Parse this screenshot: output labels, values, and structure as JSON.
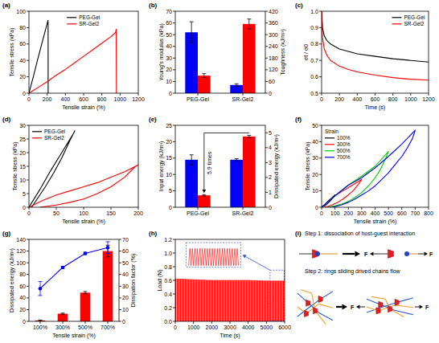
{
  "chart_data": [
    {
      "panel": "(a)",
      "type": "line",
      "x_label": "Tensile strain (%)",
      "y_label": "Tensile stress (kPa)",
      "xlim": [
        0,
        1200
      ],
      "xticks": [
        0,
        200,
        400,
        600,
        800,
        1000,
        1200
      ],
      "ylim": [
        0,
        100
      ],
      "yticks": [
        0,
        20,
        40,
        60,
        80,
        100
      ],
      "legend": "upper center",
      "series": [
        {
          "name": "PEG-Gel",
          "color": "#000000",
          "x": [
            0,
            50,
            100,
            150,
            200,
            210,
            211
          ],
          "values": [
            0,
            21,
            43,
            64,
            85,
            89,
            0
          ]
        },
        {
          "name": "SR-Gel2",
          "color": "#ff0000",
          "x": [
            0,
            100,
            200,
            300,
            400,
            500,
            600,
            700,
            800,
            900,
            950,
            958,
            960
          ],
          "values": [
            0,
            7,
            14,
            22,
            29,
            37,
            45,
            53,
            61,
            69,
            74,
            78,
            0
          ]
        }
      ]
    },
    {
      "panel": "(b)",
      "type": "bar",
      "categories": [
        "PEG-Gel",
        "SR-Gel2"
      ],
      "y_label": "Young's modulus (kPa)",
      "y2_label": "Toughness (kJ/m³)",
      "ylim": [
        0,
        70
      ],
      "yticks": [
        0,
        10,
        20,
        30,
        40,
        50,
        60,
        70
      ],
      "y2lim": [
        0,
        420
      ],
      "y2ticks": [
        0,
        60,
        120,
        180,
        240,
        300,
        360,
        420
      ],
      "series": [
        {
          "color": "#0000ff",
          "values": [
            52,
            7
          ],
          "errors": [
            9,
            1
          ]
        },
        {
          "color": "#ff0000",
          "axis": "y2",
          "values": [
            90,
            355
          ],
          "errors": [
            10,
            25
          ]
        }
      ]
    },
    {
      "panel": "(c)",
      "type": "line",
      "x_label": "Time (s)",
      "y_label": "σt / σ0",
      "xlim": [
        0,
        1200
      ],
      "xticks": [
        0,
        200,
        400,
        600,
        800,
        1000,
        1200
      ],
      "ylim": [
        0.5,
        1
      ],
      "yticks": [
        0.5,
        0.6,
        0.7,
        0.8,
        0.9,
        {
          "value": 1,
          "label": "1.0"
        }
      ],
      "legend": "upper right",
      "series": [
        {
          "name": "PEG-Gel",
          "color": "#000000",
          "x": [
            0,
            10,
            30,
            60,
            100,
            200,
            300,
            400,
            600,
            800,
            1000,
            1200
          ],
          "values": [
            1.0,
            0.9,
            0.85,
            0.82,
            0.8,
            0.77,
            0.755,
            0.74,
            0.725,
            0.71,
            0.7,
            0.69
          ]
        },
        {
          "name": "SR-Gel2",
          "color": "#ff0000",
          "x": [
            0,
            10,
            30,
            60,
            100,
            200,
            300,
            400,
            600,
            800,
            1000,
            1200
          ],
          "values": [
            1.0,
            0.84,
            0.77,
            0.73,
            0.7,
            0.665,
            0.645,
            0.63,
            0.61,
            0.595,
            0.585,
            0.58
          ]
        }
      ]
    },
    {
      "panel": "(d)",
      "type": "line",
      "x_label": "Tensile strain (%)",
      "y_label": "Tensile stress (kPa)",
      "xlim": [
        0,
        200
      ],
      "xticks": [
        0,
        50,
        100,
        150,
        200
      ],
      "ylim": [
        0,
        30
      ],
      "yticks": [
        0,
        5,
        10,
        15,
        20,
        25,
        30
      ],
      "legend": "upper left",
      "series": [
        {
          "name": "PEG-Gel",
          "color": "#000000",
          "x": [
            0,
            20,
            40,
            60,
            80,
            84,
            75,
            60,
            45,
            30,
            15,
            5
          ],
          "values": [
            0,
            6.5,
            13.5,
            20,
            26.5,
            28,
            24.5,
            18,
            12.5,
            7.5,
            3,
            0
          ]
        },
        {
          "name": "SR-Gel2",
          "color": "#ff0000",
          "x": [
            0,
            25,
            50,
            75,
            100,
            125,
            150,
            175,
            200,
            195,
            175,
            150,
            125,
            100,
            75,
            50,
            25,
            20
          ],
          "values": [
            0,
            2.5,
            4.5,
            6,
            7.5,
            9,
            11,
            13,
            15.5,
            15,
            11,
            7.5,
            5,
            3,
            1.8,
            0.8,
            0.1,
            0
          ]
        }
      ]
    },
    {
      "panel": "(e)",
      "type": "bar",
      "categories": [
        "PEG-Gel",
        "SR-Gel2"
      ],
      "y_label": "Input energy (kJ/m³)",
      "y2_label": "Dissipated energy (kJ/m³)",
      "ylim": [
        0,
        25
      ],
      "yticks": [
        0,
        5,
        10,
        15,
        20,
        25
      ],
      "y2lim": [
        0,
        5.5
      ],
      "y2ticks": [
        0,
        1,
        2,
        3,
        4,
        5
      ],
      "annotation": "5.9 times",
      "series": [
        {
          "color": "#0000ff",
          "values": [
            14.5,
            14.5
          ],
          "errors": [
            1.5,
            0.3
          ]
        },
        {
          "color": "#ff0000",
          "axis": "y2",
          "values": [
            0.8,
            4.75
          ],
          "errors": [
            0.05,
            0.08
          ]
        }
      ]
    },
    {
      "panel": "(f)",
      "type": "line",
      "x_label": "Tensile strain (%)",
      "y_label": "Tensile stress (kPa)",
      "xlim": [
        0,
        800
      ],
      "xticks": [
        0,
        100,
        200,
        300,
        400,
        500,
        600,
        700,
        800
      ],
      "ylim": [
        0,
        50
      ],
      "yticks": [
        0,
        10,
        20,
        30,
        40,
        50
      ],
      "legend": "upper left",
      "legend_title": "Strain",
      "series": [
        {
          "name": "100%",
          "color": "#000000",
          "x": [
            0,
            25,
            50,
            75,
            100,
            90,
            70,
            50,
            30,
            10,
            5
          ],
          "values": [
            0,
            1.8,
            3.8,
            5.7,
            7.5,
            6.3,
            4.3,
            2.6,
            1.2,
            0.3,
            0
          ]
        },
        {
          "name": "300%",
          "color": "#ff0000",
          "x": [
            0,
            50,
            100,
            150,
            200,
            250,
            300,
            280,
            240,
            200,
            160,
            120,
            80,
            40,
            25
          ],
          "values": [
            0,
            3.5,
            7,
            9.5,
            12,
            14.5,
            17,
            14.5,
            10.5,
            7.5,
            5,
            3,
            1.5,
            0.4,
            0
          ]
        },
        {
          "name": "500%",
          "color": "#00cc00",
          "x": [
            0,
            100,
            200,
            300,
            400,
            500,
            480,
            440,
            400,
            350,
            300,
            250,
            200,
            150,
            100,
            60,
            45
          ],
          "values": [
            0,
            7,
            13.5,
            19,
            25,
            34,
            30,
            23,
            18,
            13,
            9,
            6,
            3.5,
            2,
            0.8,
            0.2,
            0
          ]
        },
        {
          "name": "700%",
          "color": "#0000ff",
          "x": [
            0,
            100,
            200,
            300,
            400,
            500,
            600,
            700,
            680,
            640,
            600,
            550,
            500,
            450,
            400,
            350,
            300,
            250,
            200,
            150,
            100,
            70
          ],
          "values": [
            0,
            7,
            13.5,
            18,
            24,
            31,
            38.5,
            47,
            42,
            36,
            31,
            26,
            21,
            17,
            13,
            10,
            7.5,
            5,
            3,
            1.5,
            0.4,
            0
          ]
        }
      ]
    },
    {
      "panel": "(g)",
      "type": "bar",
      "categories": [
        "100%",
        "300%",
        "500%",
        "700%"
      ],
      "x_label": "Tensile strain (%)",
      "y_label": "Dissipated energy (kJ/m³)",
      "y2_label": "Dissipation factor (%)",
      "ylim": [
        0,
        140
      ],
      "yticks": [
        0,
        20,
        40,
        60,
        80,
        100,
        120,
        140
      ],
      "y2lim": [
        0,
        70
      ],
      "y2ticks": [
        0,
        10,
        20,
        30,
        40,
        50,
        60,
        70
      ],
      "series": [
        {
          "color": "#ff0000",
          "values": [
            1.5,
            13,
            49,
            120
          ],
          "errors": [
            0.4,
            1,
            2,
            10
          ]
        },
        {
          "type": "line",
          "axis": "y2",
          "color": "#0000ff",
          "marker": "circle",
          "values": [
            28,
            46,
            58,
            63
          ],
          "errors": [
            6,
            1,
            1,
            5
          ]
        }
      ]
    },
    {
      "panel": "(h)",
      "type": "area",
      "x_label": "Time (s)",
      "y_label": "Load (N)",
      "xlim": [
        0,
        6000
      ],
      "xticks": [
        0,
        1000,
        2000,
        3000,
        4000,
        5000,
        6000
      ],
      "ylim": [
        0,
        1.2
      ],
      "yticks": [
        {
          "value": 0,
          "label": "0.0"
        },
        0.2,
        0.4,
        0.6,
        0.8,
        {
          "value": 1,
          "label": "1.0"
        },
        1.2
      ],
      "color": "#ff0000",
      "x": [
        0,
        1000,
        2000,
        3000,
        4000,
        5000,
        6000
      ],
      "upper": [
        0.62,
        0.61,
        0.6,
        0.6,
        0.6,
        0.59,
        0.59
      ],
      "lower": [
        0,
        0,
        0,
        0,
        0,
        0,
        0
      ],
      "inset": {
        "tick_labels": false,
        "xlim": [
          5200,
          6000
        ],
        "ylim": [
          0,
          0.75
        ],
        "x": [
          5200,
          5220,
          5240,
          5260,
          5280,
          5300,
          5320,
          5340,
          5360,
          5380,
          5400,
          5420,
          5440,
          5460,
          5480,
          5500,
          5520,
          5540,
          5560,
          5580,
          5600,
          5620,
          5640,
          5660,
          5680,
          5700,
          5720,
          5740,
          5760,
          5780,
          5800,
          5820,
          5840,
          5860,
          5880,
          5900,
          5920,
          5940,
          5960,
          5980,
          6000
        ],
        "values": [
          0,
          0.6,
          0,
          0.6,
          0,
          0.6,
          0,
          0.6,
          0,
          0.6,
          0,
          0.6,
          0,
          0.6,
          0,
          0.6,
          0,
          0.6,
          0,
          0.6,
          0,
          0.6,
          0,
          0.6,
          0,
          0.6,
          0,
          0.6,
          0,
          0.6,
          0,
          0.6,
          0,
          0.6,
          0,
          0.6,
          0,
          0.6,
          0,
          0.6,
          0
        ]
      }
    }
  ],
  "diagram": {
    "panel": "(i)",
    "step1": "Step 1: dissociation of host-guest interaction",
    "step2": "Step 2: rings sliding drived chains flow",
    "force": "F"
  }
}
